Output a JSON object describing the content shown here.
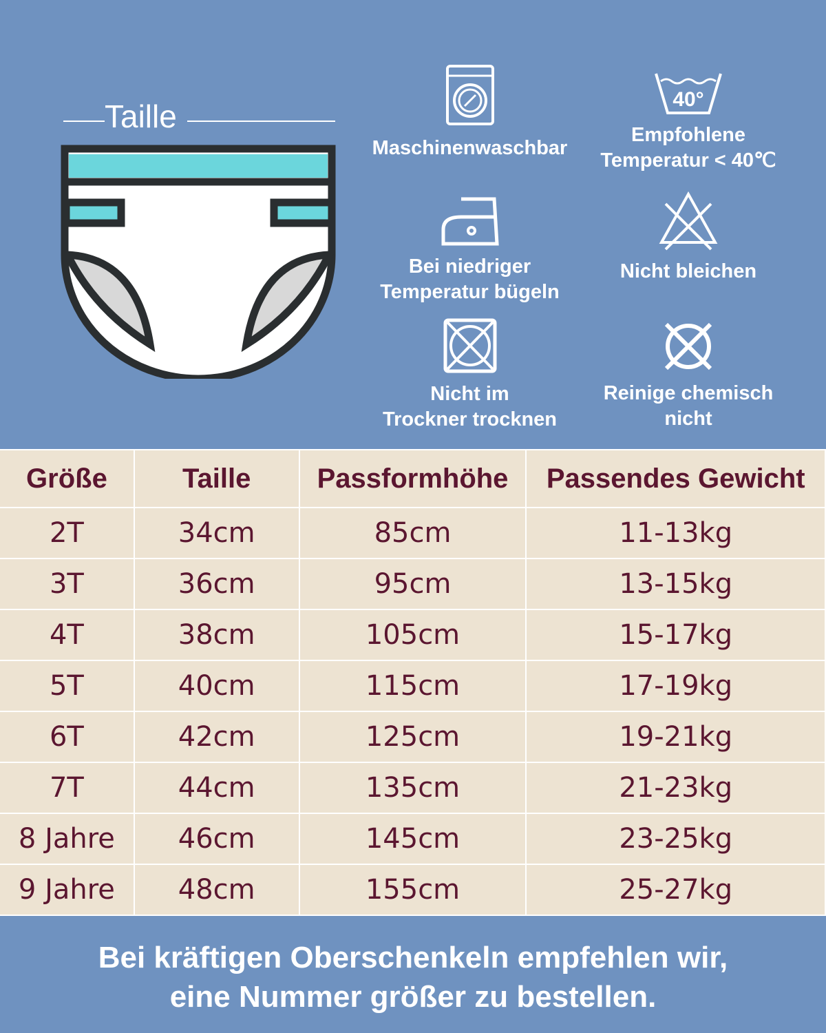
{
  "diagram": {
    "label": "Taille",
    "colors": {
      "outline": "#2a2e30",
      "band": "#6bd6dc",
      "body": "#ffffff",
      "leg": "#d8d8d8"
    }
  },
  "care": [
    {
      "icon": "washing-machine-icon",
      "label": "Maschinenwaschbar"
    },
    {
      "icon": "wash-40-icon",
      "icon_text": "40°",
      "label_line1": "Empfohlene",
      "label_line2": "Temperatur < 40℃"
    },
    {
      "icon": "iron-low-icon",
      "label_line1": "Bei niedriger",
      "label_line2": "Temperatur bügeln"
    },
    {
      "icon": "no-bleach-icon",
      "label": "Nicht bleichen"
    },
    {
      "icon": "no-tumble-dry-icon",
      "label_line1": "Nicht im",
      "label_line2": "Trockner trocknen"
    },
    {
      "icon": "no-dry-clean-icon",
      "label_line1": "Reinige chemisch",
      "label_line2": "nicht"
    }
  ],
  "table": {
    "headers": [
      "Größe",
      "Taille",
      "Passformhöhe",
      "Passendes Gewicht"
    ],
    "rows": [
      [
        "2T",
        "34cm",
        "85cm",
        "11-13kg"
      ],
      [
        "3T",
        "36cm",
        "95cm",
        "13-15kg"
      ],
      [
        "4T",
        "38cm",
        "105cm",
        "15-17kg"
      ],
      [
        "5T",
        "40cm",
        "115cm",
        "17-19kg"
      ],
      [
        "6T",
        "42cm",
        "125cm",
        "19-21kg"
      ],
      [
        "7T",
        "44cm",
        "135cm",
        "21-23kg"
      ],
      [
        "8 Jahre",
        "46cm",
        "145cm",
        "23-25kg"
      ],
      [
        "9 Jahre",
        "48cm",
        "155cm",
        "25-27kg"
      ]
    ]
  },
  "footer": {
    "line1": "Bei kräftigen Oberschenkeln empfehlen wir,",
    "line2": "eine Nummer größer zu bestellen."
  },
  "colors": {
    "background": "#6f92c0",
    "table_bg": "#ede3d2",
    "table_text": "#5b1630"
  }
}
